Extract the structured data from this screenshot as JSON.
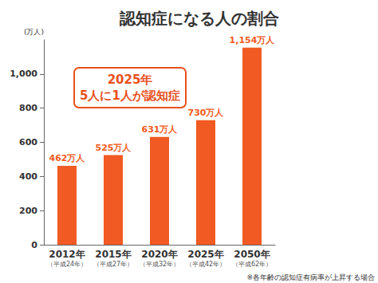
{
  "chart_data": {
    "type": "bar",
    "title": "認知症になる人の割合",
    "y_label": "(万人)",
    "annotation": "2025年\n5人に1人が認知症",
    "footnote": "※各年齢の認知症有病率が上昇する場合",
    "categories": [
      "2012年\n（平成24年）",
      "2015年\n（平成27年）",
      "2020年\n（平成32年）",
      "2025年\n（平成42年）",
      "2050年\n（平成62年）"
    ],
    "values": [
      462,
      525,
      631,
      730,
      1154
    ],
    "value_labels": [
      "462万人",
      "525万人",
      "631万人",
      "730万人",
      "1,154万人"
    ],
    "data_labels": true,
    "color": "#f15a22",
    "ylim": [
      0,
      1200
    ],
    "yticks": [
      0,
      200,
      400,
      600,
      800,
      {
        "value": 1000,
        "label": "1,000"
      }
    ],
    "grid": false
  }
}
